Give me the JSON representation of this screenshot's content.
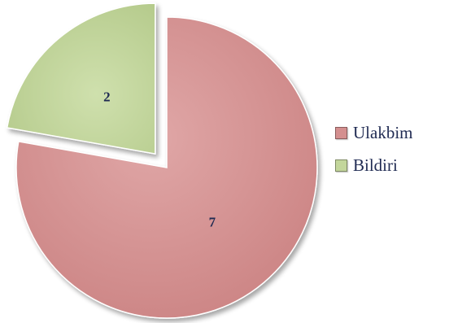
{
  "chart_data": {
    "type": "pie",
    "categories": [
      "Ulakbim",
      "Bildiri"
    ],
    "values": [
      7,
      2
    ],
    "colors": [
      "#d48f8f",
      "#c3d69b"
    ],
    "label_color": "#1f2a52",
    "exploded": [
      "Bildiri"
    ],
    "legend": "right"
  }
}
